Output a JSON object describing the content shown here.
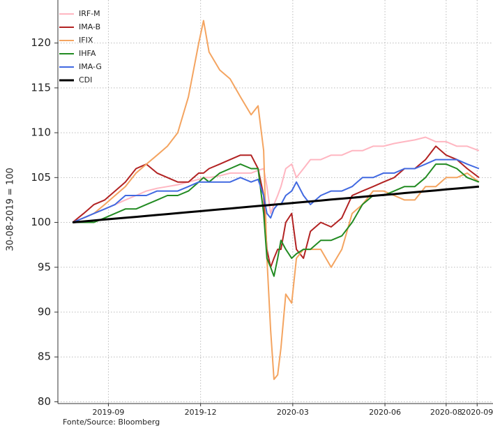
{
  "chart_data": {
    "type": "line",
    "y_label": "30-08-2019 = 100",
    "source": "Fonte/Source: Bloomberg",
    "xlim": [
      2019.53,
      2020.71
    ],
    "ylim": [
      79.8,
      124.8
    ],
    "yticks": [
      80,
      85,
      90,
      95,
      100,
      105,
      110,
      115,
      120
    ],
    "xticks": [
      {
        "value": 2019.667,
        "label": "2019-09"
      },
      {
        "value": 2019.917,
        "label": "2019-12"
      },
      {
        "value": 2020.167,
        "label": "2020-03"
      },
      {
        "value": 2020.417,
        "label": "2020-06"
      },
      {
        "value": 2020.583,
        "label": "2020-08"
      },
      {
        "value": 2020.667,
        "label": "2020-09"
      }
    ],
    "grid": true,
    "legend": "upper left",
    "x": [
      2019.57,
      2019.6,
      2019.628,
      2019.657,
      2019.685,
      2019.713,
      2019.742,
      2019.77,
      2019.799,
      2019.827,
      2019.855,
      2019.884,
      2019.912,
      2019.925,
      2019.94,
      2019.969,
      2019.997,
      2020.025,
      2020.054,
      2020.073,
      2020.088,
      2020.097,
      2020.107,
      2020.116,
      2020.126,
      2020.135,
      2020.148,
      2020.164,
      2020.177,
      2020.196,
      2020.215,
      2020.243,
      2020.271,
      2020.3,
      2020.328,
      2020.356,
      2020.385,
      2020.413,
      2020.442,
      2020.47,
      2020.498,
      2020.527,
      2020.555,
      2020.583,
      2020.612,
      2020.64,
      2020.672
    ],
    "series": [
      {
        "name": "IRF-M",
        "color": "#ffb6c1",
        "values": [
          100,
          100.5,
          101,
          101.5,
          102,
          102.5,
          103,
          103.5,
          103.8,
          104,
          104.2,
          104.5,
          104.8,
          105,
          105,
          105.2,
          105.5,
          105.5,
          105.5,
          105.8,
          106,
          104,
          101,
          102,
          103,
          104,
          106,
          106.5,
          105,
          106,
          107,
          107,
          107.5,
          107.5,
          108,
          108,
          108.5,
          108.5,
          108.8,
          109,
          109.2,
          109.5,
          109,
          109,
          108.5,
          108.5,
          108
        ]
      },
      {
        "name": "IMA-B",
        "color": "#b22222",
        "values": [
          100,
          101,
          102,
          102.5,
          103.5,
          104.5,
          106,
          106.5,
          105.5,
          105,
          104.5,
          104.5,
          105.5,
          105.5,
          106,
          106.5,
          107,
          107.5,
          107.5,
          106,
          103,
          97,
          95,
          96,
          97,
          97,
          100,
          101,
          97,
          96,
          99,
          100,
          99.5,
          100.5,
          103,
          103.5,
          104,
          104.5,
          105,
          106,
          106,
          107,
          108.5,
          107.5,
          107,
          106,
          105
        ]
      },
      {
        "name": "IFIX",
        "color": "#f4a460",
        "values": [
          100,
          100.5,
          101,
          102,
          103,
          104,
          105.5,
          106.5,
          107.5,
          108.5,
          110,
          114,
          120,
          122.5,
          119,
          117,
          116,
          114,
          112,
          113,
          108,
          96,
          88,
          82.5,
          83,
          86,
          92,
          91,
          96,
          97,
          97,
          97,
          95,
          97,
          101,
          102,
          103.5,
          103.5,
          103,
          102.5,
          102.5,
          104,
          104,
          105,
          105,
          105.5,
          104.5
        ]
      },
      {
        "name": "IHFA",
        "color": "#228b22",
        "values": [
          100,
          100,
          100,
          100.5,
          101,
          101.5,
          101.5,
          102,
          102.5,
          103,
          103,
          103.5,
          104.5,
          105,
          104.5,
          105.5,
          106,
          106.5,
          106,
          106,
          101,
          96,
          95,
          94,
          96,
          98,
          97,
          96,
          96.5,
          97,
          97,
          98,
          98,
          98.5,
          100,
          102,
          103,
          103,
          103.5,
          104,
          104,
          105,
          106.5,
          106.5,
          106,
          105,
          104.5
        ]
      },
      {
        "name": "IMA-G",
        "color": "#4169e1",
        "values": [
          100,
          100.5,
          101,
          101.5,
          102,
          103,
          103,
          103,
          103.5,
          103.5,
          103.5,
          104,
          104.5,
          104.5,
          104.5,
          104.5,
          104.5,
          105,
          104.5,
          104.8,
          103,
          101,
          100.5,
          101.5,
          102,
          102,
          103,
          103.5,
          104.5,
          103,
          102,
          103,
          103.5,
          103.5,
          104,
          105,
          105,
          105.5,
          105.5,
          106,
          106,
          106.5,
          107,
          107,
          107,
          106.5,
          106
        ]
      },
      {
        "name": "CDI",
        "color": "#000000",
        "values": [
          100,
          100.11,
          100.21,
          100.32,
          100.42,
          100.52,
          100.62,
          100.73,
          100.83,
          100.93,
          101.04,
          101.14,
          101.24,
          101.29,
          101.34,
          101.45,
          101.55,
          101.65,
          101.76,
          101.83,
          101.88,
          101.91,
          101.95,
          101.98,
          102.02,
          102.05,
          102.1,
          102.15,
          102.2,
          102.27,
          102.34,
          102.44,
          102.55,
          102.65,
          102.75,
          102.85,
          102.96,
          103.06,
          103.16,
          103.27,
          103.37,
          103.47,
          103.57,
          103.68,
          103.78,
          103.88,
          104.0
        ]
      }
    ]
  }
}
